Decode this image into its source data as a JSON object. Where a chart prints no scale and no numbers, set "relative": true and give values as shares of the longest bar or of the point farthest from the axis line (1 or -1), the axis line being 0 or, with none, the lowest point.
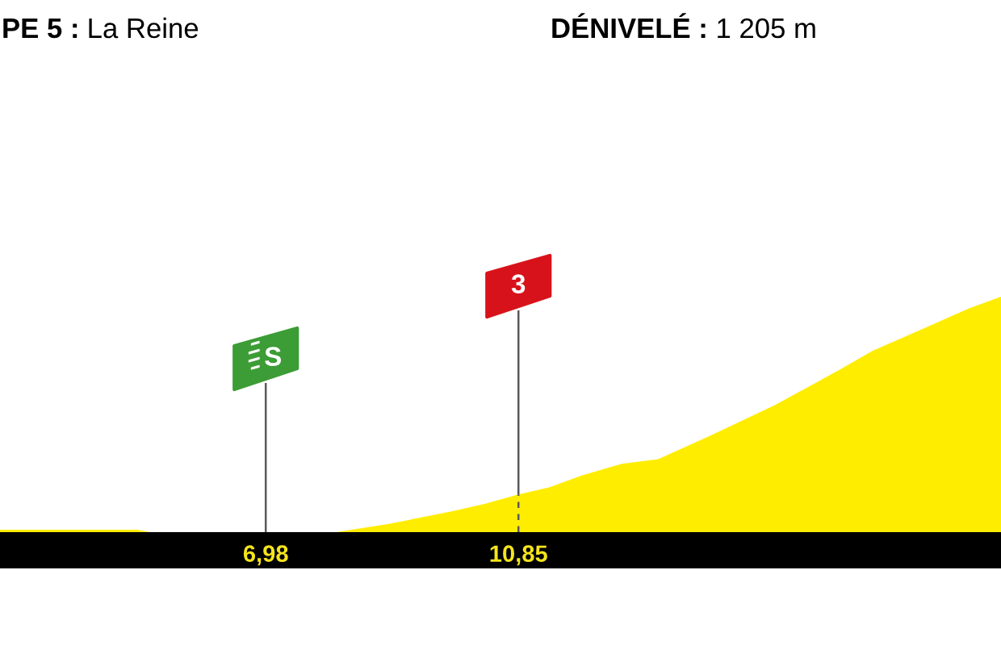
{
  "chart_data": {
    "type": "area",
    "title": "PE 5 : La Reine",
    "annotations": [
      "DÉNIVELÉ : 1 205 m",
      "S",
      "3"
    ],
    "x": [
      2.91,
      5.01,
      5.2,
      8.06,
      8.85,
      9.84,
      10.33,
      10.85,
      11.32,
      11.81,
      12.43,
      12.99,
      13.79,
      14.78,
      15.77,
      16.27,
      17.01,
      17.75,
      18.24
    ],
    "values": [
      0.01,
      0.01,
      0,
      0,
      0.034,
      0.089,
      0.12,
      0.16,
      0.19,
      0.24,
      0.29,
      0.31,
      0.41,
      0.54,
      0.69,
      0.77,
      0.86,
      0.95,
      1.0
    ],
    "color": "#ffed00",
    "relative": true,
    "xlim": [
      2.91,
      18.24
    ],
    "xticks": [
      {
        "value": 6.98,
        "label": "6,98"
      },
      {
        "value": 10.85,
        "label": "10,85"
      }
    ],
    "ref_lines": [
      {
        "axis": "x",
        "value": 6.98,
        "color": "#5a5a5a"
      },
      {
        "axis": "x",
        "value": 10.85,
        "color": "#5a5a5a"
      }
    ]
  }
}
